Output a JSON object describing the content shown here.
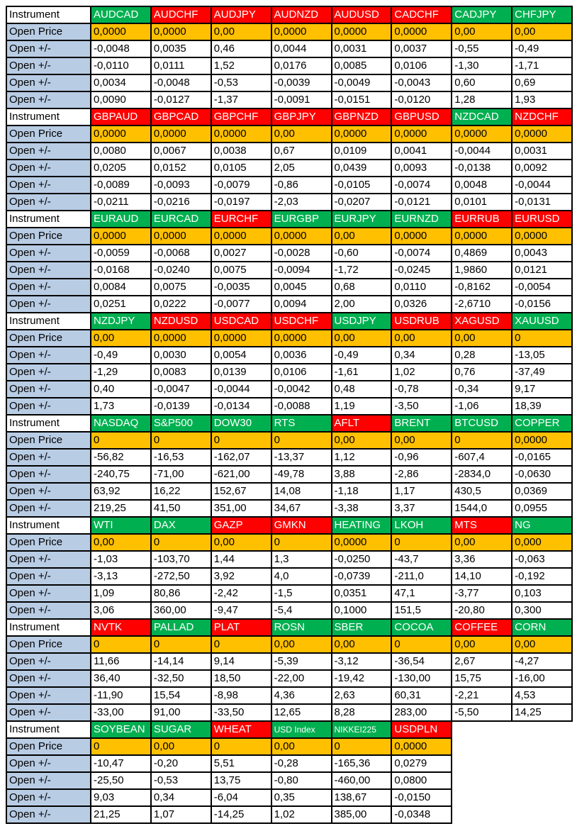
{
  "colors": {
    "green": "#00B050",
    "red": "#FF0000",
    "orange": "#FFC000",
    "label_blue": "#B8CCE4",
    "border": "#000000",
    "header_text": "#FFFFFF"
  },
  "row_labels": {
    "instrument": "Instrument",
    "open_price": "Open Price",
    "open_change": "Open +/-"
  },
  "blocks": [
    {
      "columns": [
        {
          "name": "AUDCAD",
          "color": "green",
          "open_price": "0,0000",
          "changes": [
            "-0,0048",
            "-0,0110",
            "0,0034",
            "0,0090"
          ]
        },
        {
          "name": "AUDCHF",
          "color": "red",
          "open_price": "0,0000",
          "changes": [
            "0,0035",
            "0,0111",
            "-0,0048",
            "-0,0127"
          ]
        },
        {
          "name": "AUDJPY",
          "color": "red",
          "open_price": "0,00",
          "changes": [
            "0,46",
            "1,52",
            "-0,53",
            "-1,37"
          ]
        },
        {
          "name": "AUDNZD",
          "color": "red",
          "open_price": "0,0000",
          "changes": [
            "0,0044",
            "0,0176",
            "-0,0039",
            "-0,0091"
          ]
        },
        {
          "name": "AUDUSD",
          "color": "red",
          "open_price": "0,0000",
          "changes": [
            "0,0031",
            "0,0085",
            "-0,0049",
            "-0,0151"
          ]
        },
        {
          "name": "CADCHF",
          "color": "red",
          "open_price": "0,0000",
          "changes": [
            "0,0037",
            "0,0106",
            "-0,0043",
            "-0,0120"
          ]
        },
        {
          "name": "CADJPY",
          "color": "green",
          "open_price": "0,00",
          "changes": [
            "-0,55",
            "-1,30",
            "0,60",
            "1,28"
          ]
        },
        {
          "name": "CHFJPY",
          "color": "green",
          "open_price": "0,00",
          "changes": [
            "-0,49",
            "-1,71",
            "0,69",
            "1,93"
          ]
        }
      ]
    },
    {
      "columns": [
        {
          "name": "GBPAUD",
          "color": "red",
          "open_price": "0,0000",
          "changes": [
            "0,0080",
            "0,0205",
            "-0,0089",
            "-0,0211"
          ]
        },
        {
          "name": "GBPCAD",
          "color": "red",
          "open_price": "0,0000",
          "changes": [
            "0,0067",
            "0,0152",
            "-0,0093",
            "-0,0216"
          ]
        },
        {
          "name": "GBPCHF",
          "color": "red",
          "open_price": "0,0000",
          "changes": [
            "0,0038",
            "0,0105",
            "-0,0079",
            "-0,0197"
          ]
        },
        {
          "name": "GBPJPY",
          "color": "red",
          "open_price": "0,00",
          "changes": [
            "0,67",
            "2,05",
            "-0,86",
            "-2,03"
          ]
        },
        {
          "name": "GBPNZD",
          "color": "red",
          "open_price": "0,0000",
          "changes": [
            "0,0109",
            "0,0439",
            "-0,0105",
            "-0,0207"
          ]
        },
        {
          "name": "GBPUSD",
          "color": "red",
          "open_price": "0,0000",
          "changes": [
            "0,0041",
            "0,0093",
            "-0,0074",
            "-0,0121"
          ]
        },
        {
          "name": "NZDCAD",
          "color": "green",
          "open_price": "0,0000",
          "changes": [
            "-0,0044",
            "-0,0138",
            "0,0048",
            "0,0101"
          ]
        },
        {
          "name": "NZDCHF",
          "color": "red",
          "open_price": "0,0000",
          "changes": [
            "0,0031",
            "0,0092",
            "-0,0044",
            "-0,0131"
          ]
        }
      ]
    },
    {
      "columns": [
        {
          "name": "EURAUD",
          "color": "green",
          "open_price": "0,0000",
          "changes": [
            "-0,0059",
            "-0,0168",
            "0,0084",
            "0,0251"
          ]
        },
        {
          "name": "EURCAD",
          "color": "green",
          "open_price": "0,0000",
          "changes": [
            "-0,0068",
            "-0,0240",
            "0,0075",
            "0,0222"
          ]
        },
        {
          "name": "EURCHF",
          "color": "red",
          "open_price": "0,0000",
          "changes": [
            "0,0027",
            "0,0075",
            "-0,0035",
            "-0,0077"
          ]
        },
        {
          "name": "EURGBP",
          "color": "green",
          "open_price": "0,0000",
          "changes": [
            "-0,0028",
            "-0,0094",
            "0,0045",
            "0,0094"
          ]
        },
        {
          "name": "EURJPY",
          "color": "green",
          "open_price": "0,00",
          "changes": [
            "-0,60",
            "-1,72",
            "0,68",
            "2,00"
          ]
        },
        {
          "name": "EURNZD",
          "color": "green",
          "open_price": "0,0000",
          "changes": [
            "-0,0074",
            "-0,0245",
            "0,0110",
            "0,0326"
          ]
        },
        {
          "name": "EURRUB",
          "color": "red",
          "open_price": "0,0000",
          "changes": [
            "0,4869",
            "1,9860",
            "-0,8162",
            "-2,6710"
          ]
        },
        {
          "name": "EURUSD",
          "color": "red",
          "open_price": "0,0000",
          "changes": [
            "0,0043",
            "0,0121",
            "-0,0054",
            "-0,0156"
          ]
        }
      ]
    },
    {
      "columns": [
        {
          "name": "NZDJPY",
          "color": "green",
          "open_price": "0,00",
          "changes": [
            "-0,49",
            "-1,29",
            "0,40",
            "1,73"
          ]
        },
        {
          "name": "NZDUSD",
          "color": "red",
          "open_price": "0,0000",
          "changes": [
            "0,0030",
            "0,0083",
            "-0,0047",
            "-0,0139"
          ]
        },
        {
          "name": "USDCAD",
          "color": "red",
          "open_price": "0,0000",
          "changes": [
            "0,0054",
            "0,0139",
            "-0,0044",
            "-0,0134"
          ]
        },
        {
          "name": "USDCHF",
          "color": "red",
          "open_price": "0,0000",
          "changes": [
            "0,0036",
            "0,0106",
            "-0,0042",
            "-0,0088"
          ]
        },
        {
          "name": "USDJPY",
          "color": "green",
          "open_price": "0,00",
          "changes": [
            "-0,49",
            "-1,61",
            "0,48",
            "1,19"
          ]
        },
        {
          "name": "USDRUB",
          "color": "red",
          "open_price": "0,00",
          "changes": [
            "0,34",
            "1,02",
            "-0,78",
            "-3,50"
          ]
        },
        {
          "name": "XAGUSD",
          "color": "red",
          "open_price": "0,00",
          "changes": [
            "0,28",
            "0,76",
            "-0,34",
            "-1,06"
          ]
        },
        {
          "name": "XAUUSD",
          "color": "green",
          "open_price": "0",
          "changes": [
            "-13,05",
            "-37,49",
            "9,17",
            "18,39"
          ]
        }
      ]
    },
    {
      "columns": [
        {
          "name": "NASDAQ",
          "color": "green",
          "open_price": "0",
          "changes": [
            "-56,82",
            "-240,75",
            "63,92",
            "219,25"
          ]
        },
        {
          "name": "S&P500",
          "color": "green",
          "open_price": "0",
          "changes": [
            "-16,53",
            "-71,00",
            "16,22",
            "41,50"
          ]
        },
        {
          "name": "DOW30",
          "color": "green",
          "open_price": "0",
          "changes": [
            "-162,07",
            "-621,00",
            "152,67",
            "351,00"
          ]
        },
        {
          "name": "RTS",
          "color": "green",
          "open_price": "0",
          "changes": [
            "-13,37",
            "-49,78",
            "14,08",
            "34,67"
          ]
        },
        {
          "name": "AFLT",
          "color": "red",
          "open_price": "0,00",
          "changes": [
            "1,12",
            "3,88",
            "-1,18",
            "-3,38"
          ]
        },
        {
          "name": "BRENT",
          "color": "green",
          "open_price": "0,00",
          "changes": [
            "-0,96",
            "-2,86",
            "1,17",
            "3,37"
          ]
        },
        {
          "name": "BTCUSD",
          "color": "green",
          "open_price": "0",
          "changes": [
            "-607,4",
            "-2834,0",
            "430,5",
            "1544,0"
          ]
        },
        {
          "name": "COPPER",
          "color": "green",
          "open_price": "0,0000",
          "changes": [
            "-0,0165",
            "-0,0630",
            "0,0369",
            "0,0955"
          ]
        }
      ]
    },
    {
      "columns": [
        {
          "name": "WTI",
          "color": "green",
          "open_price": "0,00",
          "changes": [
            "-1,03",
            "-3,13",
            "1,09",
            "3,06"
          ]
        },
        {
          "name": "DAX",
          "color": "green",
          "open_price": "0",
          "changes": [
            "-103,70",
            "-272,50",
            "80,86",
            "360,00"
          ]
        },
        {
          "name": "GAZP",
          "color": "red",
          "open_price": "0,00",
          "changes": [
            "1,44",
            "3,92",
            "-2,42",
            "-9,47"
          ]
        },
        {
          "name": "GMKN",
          "color": "red",
          "open_price": "0",
          "changes": [
            "1,3",
            "4,0",
            "-1,5",
            "-5,4"
          ]
        },
        {
          "name": "HEATING",
          "color": "green",
          "open_price": "0,0000",
          "changes": [
            "-0,0250",
            "-0,0739",
            "0,0351",
            "0,1000"
          ]
        },
        {
          "name": "LKOH",
          "color": "green",
          "open_price": "0",
          "changes": [
            "-43,7",
            "-211,0",
            "47,1",
            "151,5"
          ]
        },
        {
          "name": "MTS",
          "color": "red",
          "open_price": "0,00",
          "changes": [
            "3,36",
            "14,10",
            "-3,77",
            "-20,80"
          ]
        },
        {
          "name": "NG",
          "color": "green",
          "open_price": "0,000",
          "changes": [
            "-0,063",
            "-0,192",
            "0,103",
            "0,300"
          ]
        }
      ]
    },
    {
      "columns": [
        {
          "name": "NVTK",
          "color": "red",
          "open_price": "0",
          "changes": [
            "11,66",
            "36,40",
            "-11,90",
            "-33,00"
          ]
        },
        {
          "name": "PALLAD",
          "color": "green",
          "open_price": "0",
          "changes": [
            "-14,14",
            "-32,50",
            "15,54",
            "91,00"
          ]
        },
        {
          "name": "PLAT",
          "color": "red",
          "open_price": "0",
          "changes": [
            "9,14",
            "18,50",
            "-8,98",
            "-33,50"
          ]
        },
        {
          "name": "ROSN",
          "color": "green",
          "open_price": "0,00",
          "changes": [
            "-5,39",
            "-22,00",
            "4,36",
            "12,65"
          ]
        },
        {
          "name": "SBER",
          "color": "green",
          "open_price": "0,00",
          "changes": [
            "-3,12",
            "-19,42",
            "2,63",
            "8,28"
          ]
        },
        {
          "name": "COCOA",
          "color": "green",
          "open_price": "0",
          "changes": [
            "-36,54",
            "-130,00",
            "60,31",
            "283,00"
          ]
        },
        {
          "name": "COFFEE",
          "color": "red",
          "open_price": "0,00",
          "changes": [
            "2,67",
            "15,75",
            "-2,21",
            "-5,50"
          ]
        },
        {
          "name": "CORN",
          "color": "green",
          "open_price": "0,00",
          "changes": [
            "-4,27",
            "-16,00",
            "4,53",
            "14,25"
          ]
        }
      ]
    },
    {
      "columns": [
        {
          "name": "SOYBEAN",
          "color": "green",
          "open_price": "0",
          "changes": [
            "-10,47",
            "-25,50",
            "9,03",
            "21,25"
          ]
        },
        {
          "name": "SUGAR",
          "color": "green",
          "open_price": "0,00",
          "changes": [
            "-0,20",
            "-0,53",
            "0,34",
            "1,07"
          ]
        },
        {
          "name": "WHEAT",
          "color": "red",
          "open_price": "0",
          "changes": [
            "5,51",
            "13,75",
            "-6,04",
            "-14,25"
          ]
        },
        {
          "name": "USD Index",
          "color": "green",
          "open_price": "0,00",
          "changes": [
            "-0,28",
            "-0,80",
            "0,35",
            "1,02"
          ]
        },
        {
          "name": "NIKKEI225",
          "color": "green",
          "open_price": "0",
          "changes": [
            "-165,36",
            "-460,00",
            "138,67",
            "385,00"
          ]
        },
        {
          "name": "USDPLN",
          "color": "red",
          "open_price": "0,0000",
          "changes": [
            "0,0279",
            "0,0800",
            "-0,0150",
            "-0,0348"
          ]
        }
      ]
    }
  ]
}
